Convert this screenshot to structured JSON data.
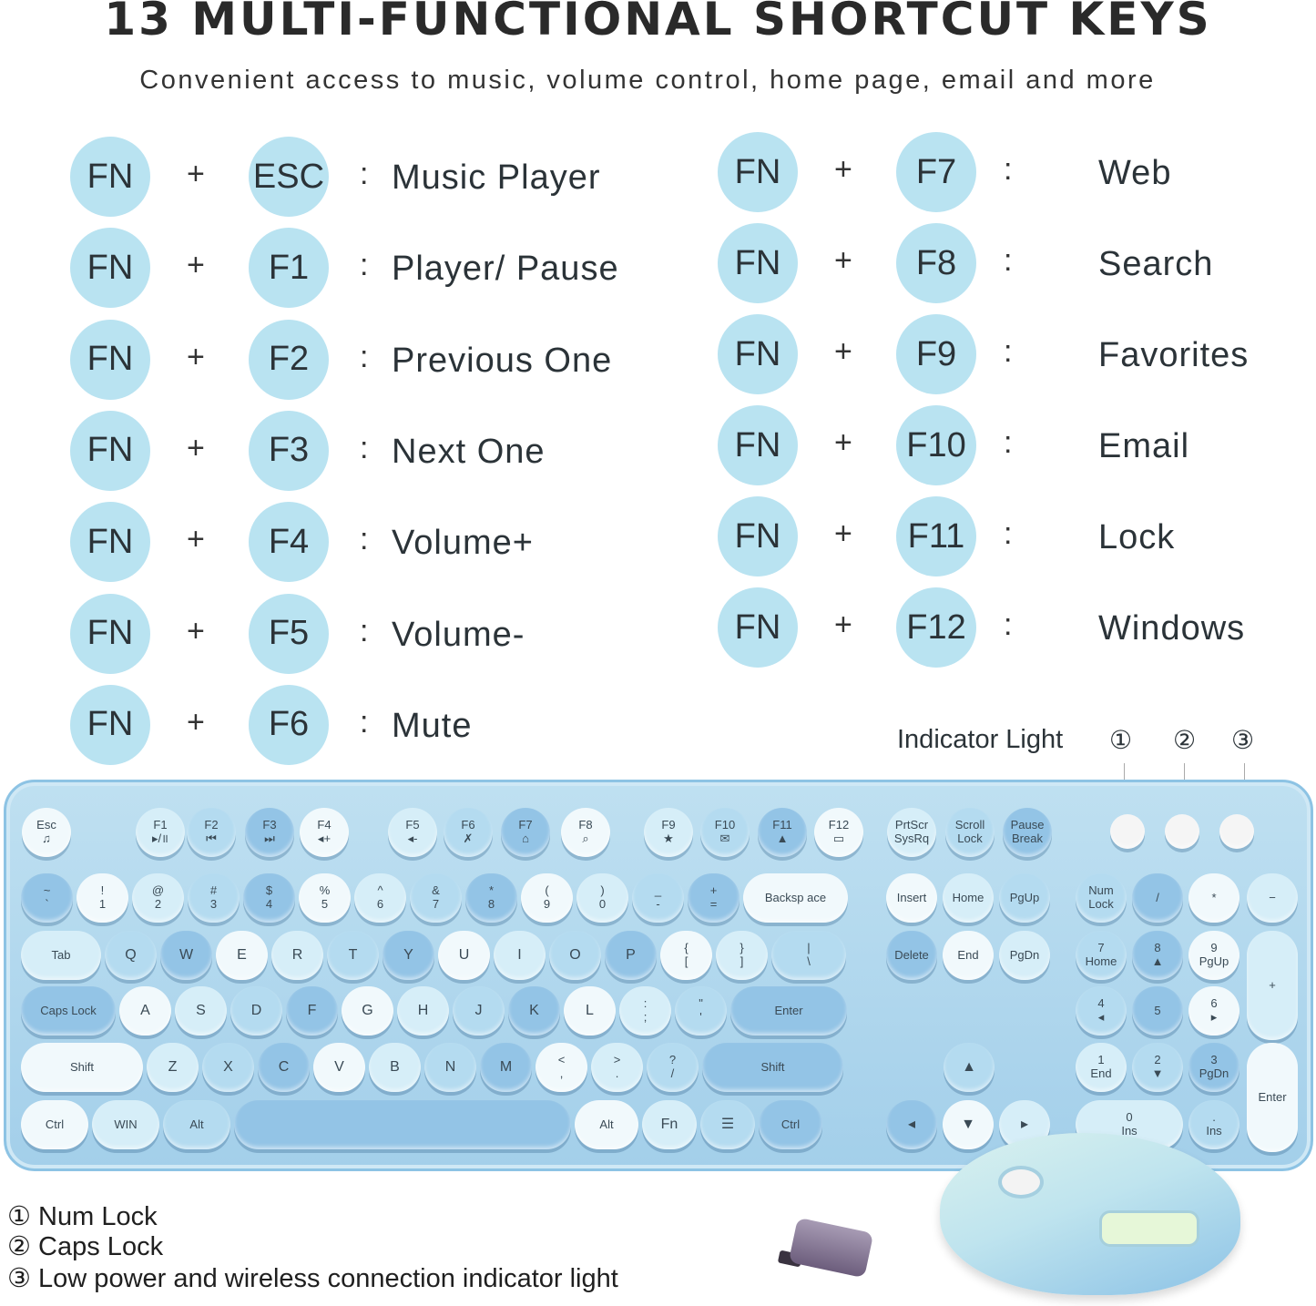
{
  "header": {
    "title": "13 MULTI-FUNCTIONAL SHORTCUT KEYS",
    "subtitle": "Convenient access to music, volume control, home page, email and more"
  },
  "colors": {
    "key_circle": "#b9e3f1",
    "keyboard": "#a3cfea",
    "text": "#2b3338"
  },
  "shortcuts_left": [
    {
      "mod": "FN",
      "plus": "+",
      "key": "ESC",
      "colon": ":",
      "action": "Music Player"
    },
    {
      "mod": "FN",
      "plus": "+",
      "key": "F1",
      "colon": ":",
      "action": "Player/ Pause"
    },
    {
      "mod": "FN",
      "plus": "+",
      "key": "F2",
      "colon": ":",
      "action": "Previous One"
    },
    {
      "mod": "FN",
      "plus": "+",
      "key": "F3",
      "colon": ":",
      "action": "Next One"
    },
    {
      "mod": "FN",
      "plus": "+",
      "key": "F4",
      "colon": ":",
      "action": "Volume+"
    },
    {
      "mod": "FN",
      "plus": "+",
      "key": "F5",
      "colon": ":",
      "action": "Volume-"
    },
    {
      "mod": "FN",
      "plus": "+",
      "key": "F6",
      "colon": ":",
      "action": "Mute"
    }
  ],
  "shortcuts_right": [
    {
      "mod": "FN",
      "plus": "+",
      "key": "F7",
      "colon": ":",
      "action": "Web"
    },
    {
      "mod": "FN",
      "plus": "+",
      "key": "F8",
      "colon": ":",
      "action": "Search"
    },
    {
      "mod": "FN",
      "plus": "+",
      "key": "F9",
      "colon": ":",
      "action": "Favorites"
    },
    {
      "mod": "FN",
      "plus": "+",
      "key": "F10",
      "colon": ":",
      "action": "Email"
    },
    {
      "mod": "FN",
      "plus": "+",
      "key": "F11",
      "colon": ":",
      "action": "Lock"
    },
    {
      "mod": "FN",
      "plus": "+",
      "key": "F12",
      "colon": ":",
      "action": "Windows"
    }
  ],
  "indicator": {
    "title": "Indicator Light",
    "numbers": [
      "①",
      "②",
      "③"
    ]
  },
  "legend": [
    "① Num Lock",
    "② Caps Lock",
    "③ Low power and wireless connection indicator light"
  ],
  "keyboard": {
    "function_row": [
      "Esc\n♫",
      "F1\n▸/॥",
      "F2\n⏮",
      "F3\n⏭",
      "F4\n◂+",
      "F5\n◂-",
      "F6\n✗",
      "F7\n⌂",
      "F8\n⌕",
      "F9\n★",
      "F10\n✉",
      "F11\n▲",
      "F12\n▭",
      "PrtScr\nSysRq",
      "Scroll\nLock",
      "Pause\nBreak"
    ],
    "main_rows": [
      [
        "~\n`",
        "!\n1",
        "@\n2",
        "#\n3",
        "$\n4",
        "%\n5",
        "^\n6",
        "&\n7",
        "*\n8",
        "(\n9",
        ")\n0",
        "_\n-",
        "+\n=",
        "Backsp ace"
      ],
      [
        "Tab",
        "Q",
        "W",
        "E",
        "R",
        "T",
        "Y",
        "U",
        "I",
        "O",
        "P",
        "{\n[",
        "}\n]",
        "|\n\\"
      ],
      [
        "Caps Lock",
        "A",
        "S",
        "D",
        "F",
        "G",
        "H",
        "J",
        "K",
        "L",
        ":\n;",
        "\"\n'",
        "Enter"
      ],
      [
        "Shift",
        "Z",
        "X",
        "C",
        "V",
        "B",
        "N",
        "M",
        "<\n,",
        ">\n.",
        "?\n/",
        "Shift"
      ],
      [
        "Ctrl",
        "WIN",
        "Alt",
        "",
        "Alt",
        "Fn",
        "☰",
        "Ctrl"
      ]
    ],
    "nav": {
      "row1": [
        "Insert",
        "Home",
        "PgUp"
      ],
      "row2": [
        "Delete",
        "End",
        "PgDn"
      ],
      "arrows": [
        "▲",
        "◂",
        "▼",
        "▸"
      ]
    },
    "numpad": [
      "Num\nLock",
      "/",
      "*",
      "−",
      "7\nHome",
      "8\n▲",
      "9\nPgUp",
      "+",
      "4\n◂",
      "5",
      "6\n▸",
      "1\nEnd",
      "2\n▼",
      "3\nPgDn",
      "Enter",
      "0\nIns",
      ".\nIns"
    ]
  }
}
